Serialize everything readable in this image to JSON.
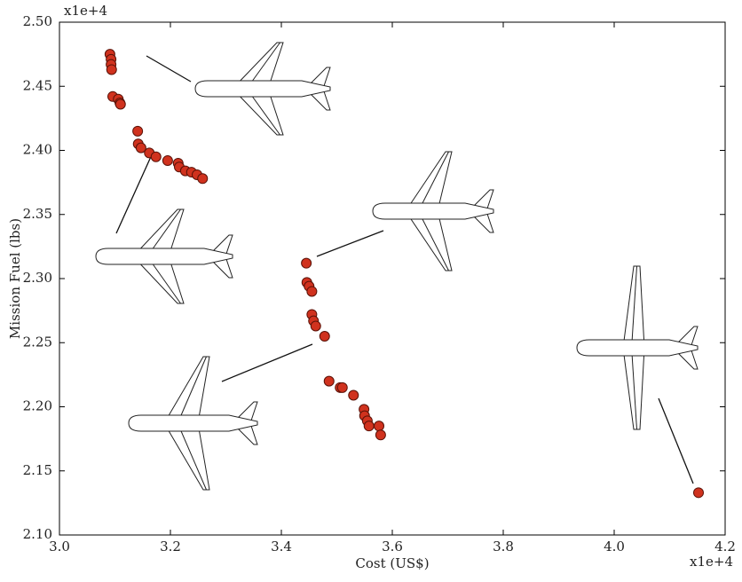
{
  "chart_data": {
    "type": "scatter",
    "x_label": "Cost (US$)",
    "y_label": "Mission Fuel (lbs)",
    "x_offset_label": "x1e+4",
    "y_offset_label": "x1e+4",
    "xlim": [
      3.0,
      4.2
    ],
    "xticks": [
      {
        "value": 3.0,
        "label": "3.0"
      },
      {
        "value": 3.2,
        "label": "3.2"
      },
      {
        "value": 3.4,
        "label": "3.4"
      },
      {
        "value": 3.6,
        "label": "3.6"
      },
      {
        "value": 3.8,
        "label": "3.8"
      },
      {
        "value": 4.0,
        "label": "4.0"
      },
      {
        "value": 4.2,
        "label": "4.2"
      }
    ],
    "ylim": [
      2.1,
      2.5
    ],
    "yticks": [
      {
        "value": 2.1,
        "label": "2.10"
      },
      {
        "value": 2.15,
        "label": "2.15"
      },
      {
        "value": 2.2,
        "label": "2.20"
      },
      {
        "value": 2.25,
        "label": "2.25"
      },
      {
        "value": 2.3,
        "label": "2.30"
      },
      {
        "value": 2.35,
        "label": "2.35"
      },
      {
        "value": 2.4,
        "label": "2.40"
      },
      {
        "value": 2.45,
        "label": "2.45"
      },
      {
        "value": 2.5,
        "label": "2.50"
      }
    ],
    "grid": false,
    "series": [
      {
        "color": "#d0321e",
        "x": [
          3.091,
          3.093,
          3.093,
          3.094,
          3.096,
          3.106,
          3.109,
          3.11,
          3.141,
          3.142,
          3.147,
          3.162,
          3.174,
          3.195,
          3.214,
          3.216,
          3.227,
          3.238,
          3.248,
          3.258,
          3.445,
          3.446,
          3.45,
          3.455,
          3.455,
          3.458,
          3.462,
          3.478,
          3.486,
          3.506,
          3.51,
          3.53,
          3.549,
          3.55,
          3.555,
          3.558,
          3.576,
          3.579,
          4.152
        ],
        "values": [
          2.475,
          2.471,
          2.467,
          2.463,
          2.442,
          2.44,
          2.437,
          2.436,
          2.415,
          2.405,
          2.402,
          2.398,
          2.395,
          2.392,
          2.39,
          2.387,
          2.384,
          2.383,
          2.381,
          2.378,
          2.312,
          2.297,
          2.294,
          2.29,
          2.272,
          2.267,
          2.263,
          2.255,
          2.22,
          2.215,
          2.215,
          2.209,
          2.198,
          2.193,
          2.189,
          2.185,
          2.185,
          2.178,
          2.133
        ]
      }
    ]
  }
}
